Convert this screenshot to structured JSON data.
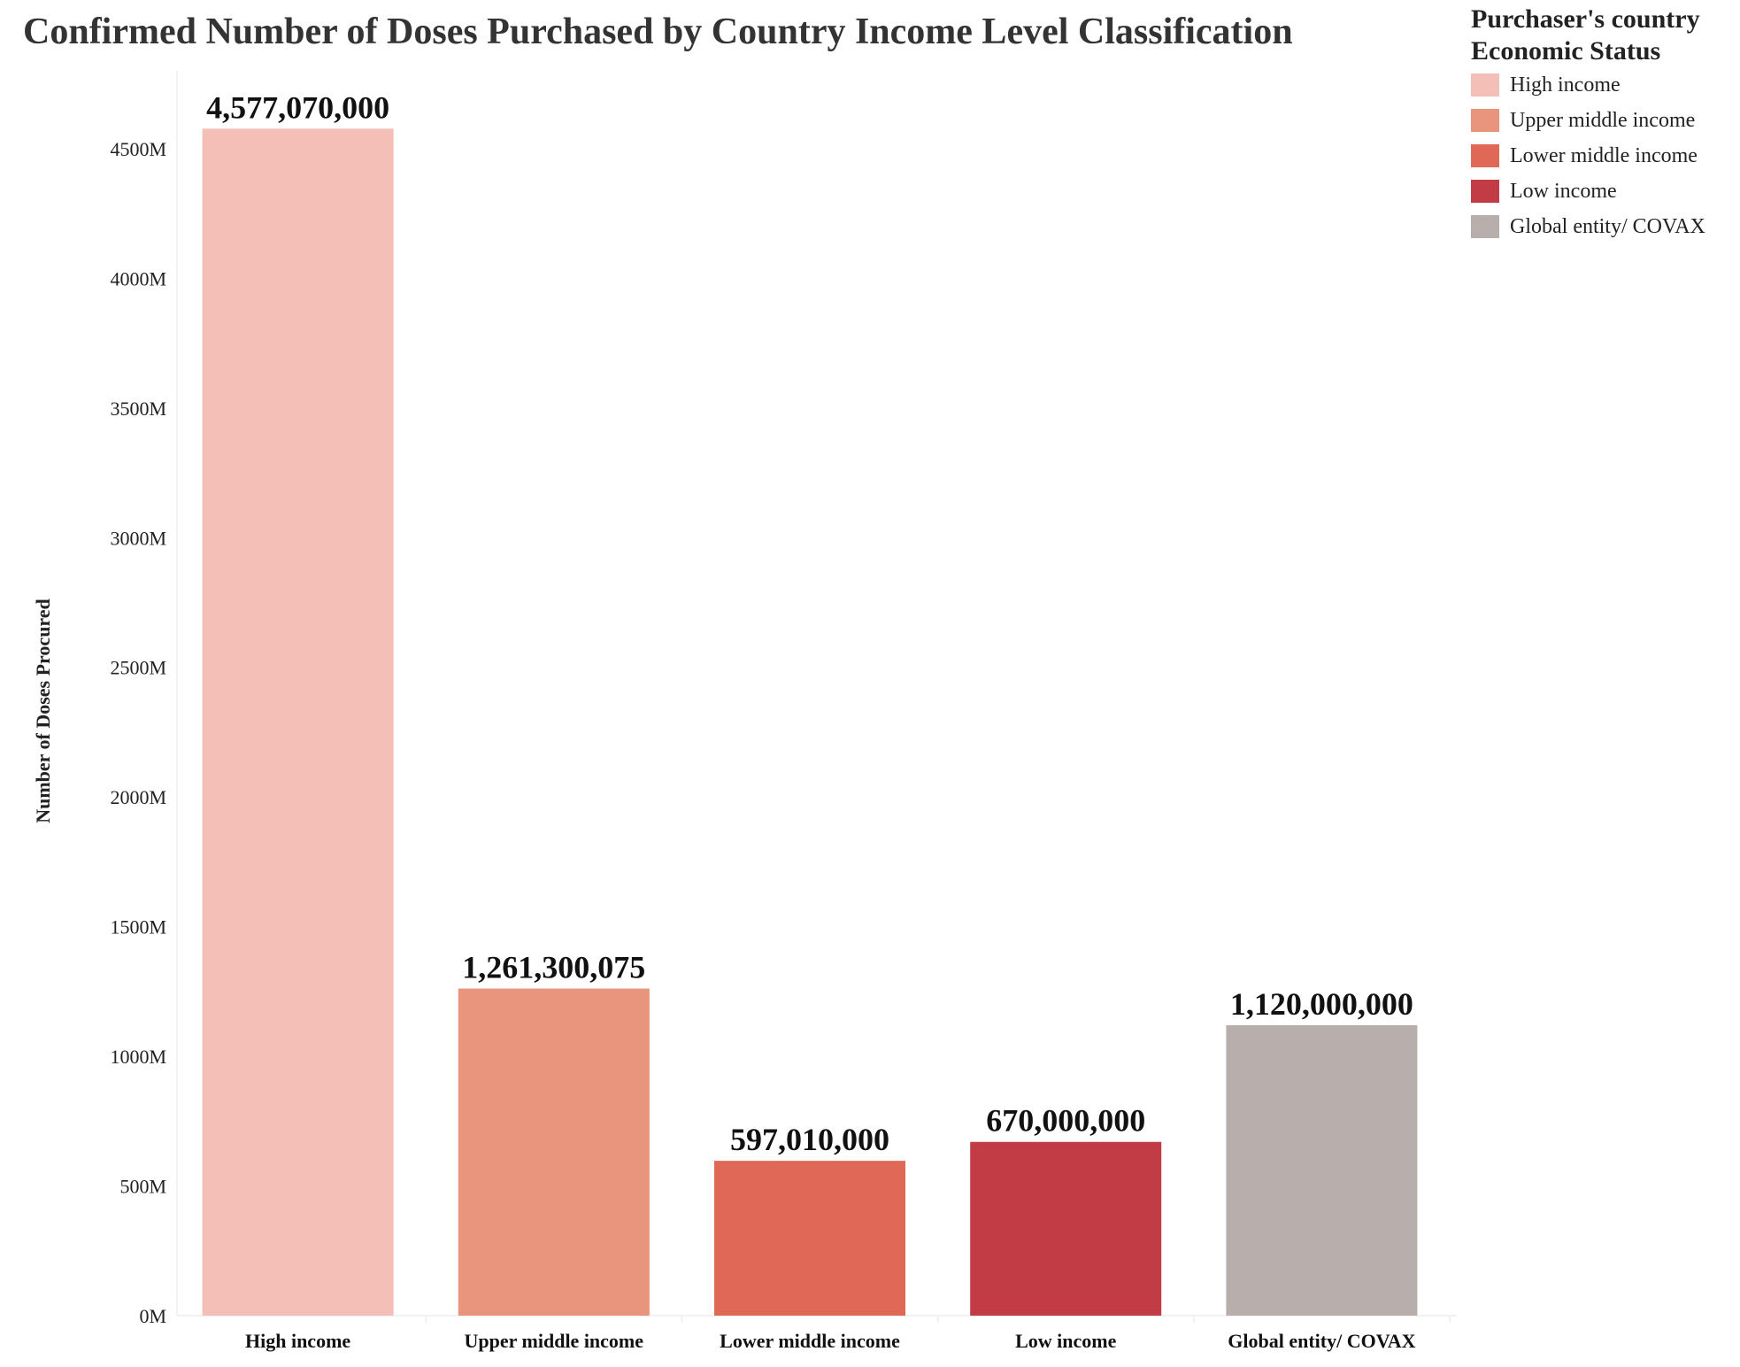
{
  "title": "Confirmed Number of Doses Purchased by Country Income Level Classification",
  "legend": {
    "title": "Purchaser's country\nEconomic  Status",
    "items": [
      {
        "label": "High income",
        "color": "#f3bfb6"
      },
      {
        "label": "Upper middle income",
        "color": "#e9947d"
      },
      {
        "label": "Lower middle income",
        "color": "#df6856"
      },
      {
        "label": "Low income",
        "color": "#c13c44"
      },
      {
        "label": "Global entity/ COVAX",
        "color": "#b8afac"
      }
    ]
  },
  "chart_data": {
    "type": "bar",
    "title": "Confirmed Number of Doses Purchased by Country Income Level Classification",
    "xlabel": "",
    "ylabel": "Number of Doses Procured",
    "categories": [
      "High income",
      "Upper middle income",
      "Lower middle income",
      "Low income",
      "Global entity/ COVAX"
    ],
    "values": [
      4577070000,
      1261300075,
      597010000,
      670000000,
      1120000000
    ],
    "data_labels": [
      "4,577,070,000",
      "1,261,300,075",
      "597,010,000",
      "670,000,000",
      "1,120,000,000"
    ],
    "colors": [
      "#f3bfb6",
      "#e9947d",
      "#df6856",
      "#c13c44",
      "#b8afac"
    ],
    "yticks": [
      0,
      500000000,
      1000000000,
      1500000000,
      2000000000,
      2500000000,
      3000000000,
      3500000000,
      4000000000,
      4500000000
    ],
    "ytick_labels": [
      "0M",
      "500M",
      "1000M",
      "1500M",
      "2000M",
      "2500M",
      "3000M",
      "3500M",
      "4000M",
      "4500M"
    ],
    "ylim": [
      0,
      4800000000
    ],
    "grid": false,
    "legend_position": "top-right"
  }
}
